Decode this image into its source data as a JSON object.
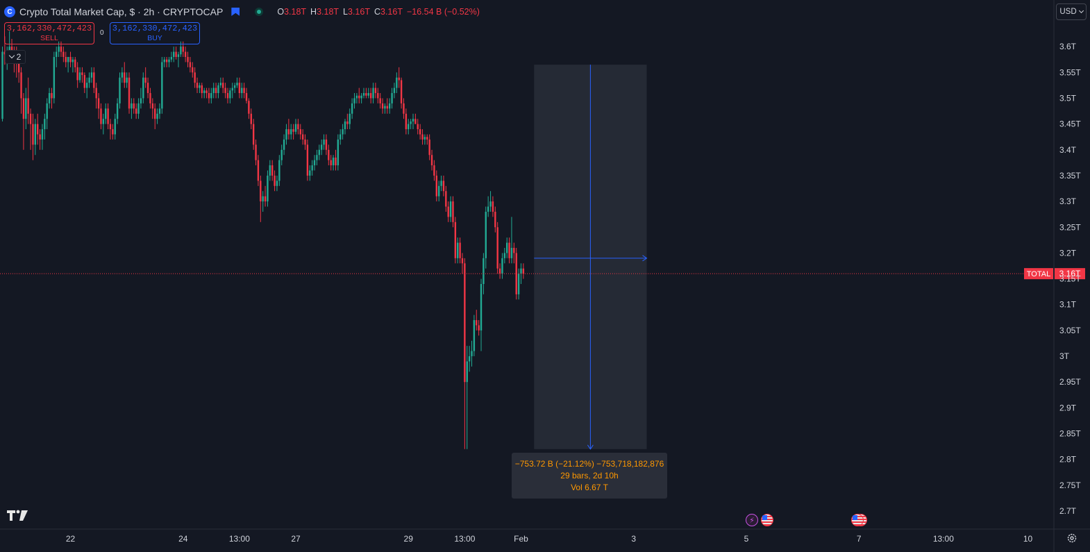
{
  "header": {
    "logo_letter": "C",
    "title": "Crypto Total Market Cap, $ · 2h · CRYPTOCAP",
    "ohlc": [
      {
        "label": "O",
        "value": "3.18T"
      },
      {
        "label": "H",
        "value": "3.18T"
      },
      {
        "label": "L",
        "value": "3.16T"
      },
      {
        "label": "C",
        "value": "3.16T"
      },
      {
        "label": "",
        "value": "−16.54 B (−0.52%)"
      }
    ]
  },
  "trading": {
    "sell_price": "3,162,330,472,423",
    "sell_label": "SELL",
    "spread": "0",
    "buy_price": "3,162,330,472,423",
    "buy_label": "BUY"
  },
  "indicators_toggle": {
    "count": "2"
  },
  "currency_selector": {
    "value": "USD"
  },
  "measure_tooltip": {
    "line1": "−753.72 B (−21.12%) −753,718,182,876",
    "line2": "29 bars, 2d 10h",
    "line3": "Vol 6.67 T"
  },
  "price_label": {
    "symbol": "TOTAL",
    "value": "3.16T"
  },
  "colors": {
    "background": "#141823",
    "up": "#22ab94",
    "down": "#f23645",
    "accent": "#2962ff",
    "measure_text": "#ff9800"
  },
  "icons": [
    "crypto-logo-icon",
    "bookmark-flag-icon",
    "market-status-icon",
    "chevron-down-icon",
    "tradingview-logo-icon",
    "lightning-event-icon",
    "us-flag-event-icon",
    "gear-icon"
  ],
  "chart_data": {
    "type": "candlestick",
    "title": "Crypto Total Market Cap, $ · 2h · CRYPTOCAP",
    "y_unit": "T",
    "ylim": [
      2.665,
      3.65
    ],
    "y_ticks": [
      {
        "v": 3.6,
        "label": "3.6T"
      },
      {
        "v": 3.55,
        "label": "3.55T"
      },
      {
        "v": 3.5,
        "label": "3.5T"
      },
      {
        "v": 3.45,
        "label": "3.45T"
      },
      {
        "v": 3.4,
        "label": "3.4T"
      },
      {
        "v": 3.35,
        "label": "3.35T"
      },
      {
        "v": 3.3,
        "label": "3.3T"
      },
      {
        "v": 3.25,
        "label": "3.25T"
      },
      {
        "v": 3.2,
        "label": "3.2T"
      },
      {
        "v": 3.15,
        "label": "3.15T"
      },
      {
        "v": 3.1,
        "label": "3.1T"
      },
      {
        "v": 3.05,
        "label": "3.05T"
      },
      {
        "v": 3.0,
        "label": "3T"
      },
      {
        "v": 2.95,
        "label": "2.95T"
      },
      {
        "v": 2.9,
        "label": "2.9T"
      },
      {
        "v": 2.85,
        "label": "2.85T"
      },
      {
        "v": 2.8,
        "label": "2.8T"
      },
      {
        "v": 2.75,
        "label": "2.75T"
      },
      {
        "v": 2.7,
        "label": "2.7T"
      }
    ],
    "x_ticks": [
      {
        "bar": 29,
        "label": "22"
      },
      {
        "bar": 77,
        "label": "24"
      },
      {
        "bar": 101,
        "label": "13:00"
      },
      {
        "bar": 125,
        "label": "27"
      },
      {
        "bar": 173,
        "label": "29"
      },
      {
        "bar": 197,
        "label": "13:00"
      },
      {
        "bar": 221,
        "label": "Feb"
      },
      {
        "bar": 269,
        "label": "3"
      },
      {
        "bar": 317,
        "label": "5"
      },
      {
        "bar": 365,
        "label": "7"
      },
      {
        "bar": 401,
        "label": "13:00"
      },
      {
        "bar": 437,
        "label": "10"
      }
    ],
    "candles": [
      [
        3.46,
        3.6,
        3.455,
        3.59
      ],
      [
        3.59,
        3.62,
        3.565,
        3.585
      ],
      [
        3.585,
        3.6,
        3.555,
        3.59
      ],
      [
        3.59,
        3.63,
        3.58,
        3.6
      ],
      [
        3.6,
        3.615,
        3.57,
        3.59
      ],
      [
        3.59,
        3.6,
        3.55,
        3.585
      ],
      [
        3.585,
        3.6,
        3.54,
        3.58
      ],
      [
        3.58,
        3.59,
        3.53,
        3.55
      ],
      [
        3.55,
        3.56,
        3.47,
        3.5
      ],
      [
        3.5,
        3.51,
        3.4,
        3.46
      ],
      [
        3.46,
        3.52,
        3.44,
        3.5
      ],
      [
        3.5,
        3.54,
        3.45,
        3.47
      ],
      [
        3.47,
        3.48,
        3.4,
        3.45
      ],
      [
        3.45,
        3.47,
        3.38,
        3.41
      ],
      [
        3.41,
        3.46,
        3.39,
        3.45
      ],
      [
        3.45,
        3.47,
        3.41,
        3.43
      ],
      [
        3.43,
        3.44,
        3.4,
        3.42
      ],
      [
        3.42,
        3.45,
        3.4,
        3.44
      ],
      [
        3.44,
        3.47,
        3.42,
        3.46
      ],
      [
        3.46,
        3.5,
        3.44,
        3.49
      ],
      [
        3.49,
        3.52,
        3.48,
        3.51
      ],
      [
        3.51,
        3.52,
        3.48,
        3.5
      ],
      [
        3.5,
        3.59,
        3.49,
        3.58
      ],
      [
        3.58,
        3.6,
        3.56,
        3.59
      ],
      [
        3.59,
        3.61,
        3.58,
        3.6
      ],
      [
        3.6,
        3.61,
        3.58,
        3.59
      ],
      [
        3.59,
        3.6,
        3.57,
        3.58
      ],
      [
        3.58,
        3.59,
        3.56,
        3.57
      ],
      [
        3.57,
        3.58,
        3.55,
        3.58
      ],
      [
        3.58,
        3.59,
        3.56,
        3.57
      ],
      [
        3.57,
        3.58,
        3.55,
        3.575
      ],
      [
        3.575,
        3.58,
        3.55,
        3.56
      ],
      [
        3.56,
        3.57,
        3.52,
        3.535
      ],
      [
        3.535,
        3.56,
        3.53,
        3.55
      ],
      [
        3.55,
        3.56,
        3.53,
        3.545
      ],
      [
        3.545,
        3.55,
        3.51,
        3.52
      ],
      [
        3.52,
        3.54,
        3.5,
        3.53
      ],
      [
        3.53,
        3.55,
        3.52,
        3.54
      ],
      [
        3.54,
        3.56,
        3.53,
        3.55
      ],
      [
        3.55,
        3.56,
        3.51,
        3.52
      ],
      [
        3.52,
        3.53,
        3.48,
        3.5
      ],
      [
        3.5,
        3.51,
        3.46,
        3.48
      ],
      [
        3.48,
        3.49,
        3.44,
        3.45
      ],
      [
        3.45,
        3.47,
        3.43,
        3.46
      ],
      [
        3.46,
        3.49,
        3.45,
        3.48
      ],
      [
        3.48,
        3.49,
        3.44,
        3.45
      ],
      [
        3.45,
        3.46,
        3.42,
        3.44
      ],
      [
        3.44,
        3.45,
        3.42,
        3.43
      ],
      [
        3.43,
        3.47,
        3.42,
        3.46
      ],
      [
        3.46,
        3.5,
        3.45,
        3.49
      ],
      [
        3.49,
        3.55,
        3.48,
        3.54
      ],
      [
        3.54,
        3.56,
        3.53,
        3.55
      ],
      [
        3.55,
        3.57,
        3.52,
        3.53
      ],
      [
        3.53,
        3.55,
        3.52,
        3.54
      ],
      [
        3.54,
        3.55,
        3.47,
        3.48
      ],
      [
        3.48,
        3.5,
        3.46,
        3.49
      ],
      [
        3.49,
        3.5,
        3.47,
        3.48
      ],
      [
        3.48,
        3.49,
        3.46,
        3.47
      ],
      [
        3.47,
        3.5,
        3.46,
        3.49
      ],
      [
        3.49,
        3.52,
        3.48,
        3.5
      ],
      [
        3.5,
        3.55,
        3.49,
        3.54
      ],
      [
        3.54,
        3.56,
        3.52,
        3.53
      ],
      [
        3.53,
        3.54,
        3.5,
        3.51
      ],
      [
        3.51,
        3.52,
        3.48,
        3.49
      ],
      [
        3.49,
        3.5,
        3.46,
        3.48
      ],
      [
        3.48,
        3.49,
        3.44,
        3.46
      ],
      [
        3.46,
        3.48,
        3.45,
        3.47
      ],
      [
        3.47,
        3.49,
        3.46,
        3.48
      ],
      [
        3.48,
        3.58,
        3.47,
        3.57
      ],
      [
        3.57,
        3.58,
        3.56,
        3.575
      ],
      [
        3.575,
        3.58,
        3.56,
        3.57
      ],
      [
        3.57,
        3.58,
        3.56,
        3.575
      ],
      [
        3.575,
        3.59,
        3.57,
        3.58
      ],
      [
        3.58,
        3.6,
        3.57,
        3.59
      ],
      [
        3.59,
        3.6,
        3.575,
        3.58
      ],
      [
        3.58,
        3.59,
        3.56,
        3.585
      ],
      [
        3.585,
        3.61,
        3.58,
        3.6
      ],
      [
        3.6,
        3.61,
        3.58,
        3.59
      ],
      [
        3.59,
        3.6,
        3.57,
        3.58
      ],
      [
        3.58,
        3.59,
        3.56,
        3.57
      ],
      [
        3.57,
        3.58,
        3.55,
        3.56
      ],
      [
        3.56,
        3.57,
        3.54,
        3.55
      ],
      [
        3.55,
        3.56,
        3.52,
        3.53
      ],
      [
        3.53,
        3.54,
        3.51,
        3.52
      ],
      [
        3.52,
        3.53,
        3.51,
        3.525
      ],
      [
        3.525,
        3.53,
        3.5,
        3.51
      ],
      [
        3.51,
        3.52,
        3.5,
        3.515
      ],
      [
        3.515,
        3.52,
        3.5,
        3.51
      ],
      [
        3.51,
        3.52,
        3.49,
        3.5
      ],
      [
        3.5,
        3.52,
        3.49,
        3.51
      ],
      [
        3.51,
        3.53,
        3.5,
        3.52
      ],
      [
        3.52,
        3.53,
        3.5,
        3.51
      ],
      [
        3.51,
        3.53,
        3.5,
        3.525
      ],
      [
        3.525,
        3.54,
        3.52,
        3.53
      ],
      [
        3.53,
        3.54,
        3.51,
        3.52
      ],
      [
        3.52,
        3.53,
        3.5,
        3.51
      ],
      [
        3.51,
        3.52,
        3.49,
        3.5
      ],
      [
        3.5,
        3.52,
        3.49,
        3.515
      ],
      [
        3.515,
        3.53,
        3.5,
        3.52
      ],
      [
        3.52,
        3.53,
        3.51,
        3.525
      ],
      [
        3.525,
        3.54,
        3.52,
        3.53
      ],
      [
        3.53,
        3.54,
        3.5,
        3.51
      ],
      [
        3.51,
        3.53,
        3.5,
        3.52
      ],
      [
        3.52,
        3.53,
        3.5,
        3.51
      ],
      [
        3.51,
        3.52,
        3.49,
        3.495
      ],
      [
        3.495,
        3.5,
        3.46,
        3.47
      ],
      [
        3.47,
        3.48,
        3.44,
        3.45
      ],
      [
        3.45,
        3.46,
        3.4,
        3.41
      ],
      [
        3.41,
        3.42,
        3.37,
        3.38
      ],
      [
        3.38,
        3.39,
        3.33,
        3.34
      ],
      [
        3.34,
        3.35,
        3.26,
        3.3
      ],
      [
        3.3,
        3.32,
        3.28,
        3.31
      ],
      [
        3.31,
        3.33,
        3.29,
        3.3
      ],
      [
        3.3,
        3.36,
        3.29,
        3.35
      ],
      [
        3.35,
        3.38,
        3.34,
        3.37
      ],
      [
        3.37,
        3.38,
        3.34,
        3.35
      ],
      [
        3.35,
        3.36,
        3.32,
        3.33
      ],
      [
        3.33,
        3.35,
        3.32,
        3.34
      ],
      [
        3.34,
        3.39,
        3.33,
        3.38
      ],
      [
        3.38,
        3.41,
        3.37,
        3.4
      ],
      [
        3.4,
        3.43,
        3.39,
        3.42
      ],
      [
        3.42,
        3.45,
        3.41,
        3.44
      ],
      [
        3.44,
        3.46,
        3.42,
        3.43
      ],
      [
        3.43,
        3.45,
        3.42,
        3.44
      ],
      [
        3.44,
        3.45,
        3.42,
        3.435
      ],
      [
        3.435,
        3.46,
        3.43,
        3.45
      ],
      [
        3.45,
        3.46,
        3.43,
        3.44
      ],
      [
        3.44,
        3.45,
        3.42,
        3.43
      ],
      [
        3.43,
        3.44,
        3.41,
        3.42
      ],
      [
        3.42,
        3.43,
        3.4,
        3.41
      ],
      [
        3.41,
        3.42,
        3.34,
        3.35
      ],
      [
        3.35,
        3.37,
        3.34,
        3.36
      ],
      [
        3.36,
        3.38,
        3.35,
        3.37
      ],
      [
        3.37,
        3.39,
        3.36,
        3.38
      ],
      [
        3.38,
        3.4,
        3.37,
        3.39
      ],
      [
        3.39,
        3.41,
        3.38,
        3.4
      ],
      [
        3.4,
        3.42,
        3.39,
        3.41
      ],
      [
        3.41,
        3.43,
        3.4,
        3.42
      ],
      [
        3.42,
        3.43,
        3.39,
        3.4
      ],
      [
        3.4,
        3.41,
        3.37,
        3.38
      ],
      [
        3.38,
        3.39,
        3.36,
        3.37
      ],
      [
        3.37,
        3.39,
        3.36,
        3.385
      ],
      [
        3.385,
        3.4,
        3.36,
        3.37
      ],
      [
        3.37,
        3.43,
        3.36,
        3.42
      ],
      [
        3.42,
        3.44,
        3.41,
        3.43
      ],
      [
        3.43,
        3.45,
        3.42,
        3.44
      ],
      [
        3.44,
        3.46,
        3.43,
        3.455
      ],
      [
        3.455,
        3.47,
        3.44,
        3.45
      ],
      [
        3.45,
        3.48,
        3.44,
        3.47
      ],
      [
        3.47,
        3.5,
        3.46,
        3.49
      ],
      [
        3.49,
        3.51,
        3.48,
        3.5
      ],
      [
        3.5,
        3.51,
        3.49,
        3.505
      ],
      [
        3.505,
        3.52,
        3.49,
        3.5
      ],
      [
        3.5,
        3.51,
        3.49,
        3.505
      ],
      [
        3.505,
        3.52,
        3.5,
        3.51
      ],
      [
        3.51,
        3.52,
        3.5,
        3.505
      ],
      [
        3.505,
        3.52,
        3.5,
        3.51
      ],
      [
        3.51,
        3.52,
        3.49,
        3.5
      ],
      [
        3.5,
        3.53,
        3.49,
        3.52
      ],
      [
        3.52,
        3.53,
        3.5,
        3.51
      ],
      [
        3.51,
        3.52,
        3.49,
        3.5
      ],
      [
        3.5,
        3.51,
        3.48,
        3.49
      ],
      [
        3.49,
        3.5,
        3.47,
        3.48
      ],
      [
        3.48,
        3.49,
        3.47,
        3.485
      ],
      [
        3.485,
        3.5,
        3.47,
        3.48
      ],
      [
        3.48,
        3.5,
        3.47,
        3.49
      ],
      [
        3.49,
        3.52,
        3.48,
        3.51
      ],
      [
        3.51,
        3.53,
        3.5,
        3.52
      ],
      [
        3.52,
        3.55,
        3.51,
        3.54
      ],
      [
        3.54,
        3.56,
        3.52,
        3.535
      ],
      [
        3.535,
        3.54,
        3.48,
        3.49
      ],
      [
        3.49,
        3.5,
        3.46,
        3.47
      ],
      [
        3.47,
        3.48,
        3.43,
        3.44
      ],
      [
        3.44,
        3.46,
        3.43,
        3.45
      ],
      [
        3.45,
        3.46,
        3.44,
        3.455
      ],
      [
        3.455,
        3.47,
        3.44,
        3.46
      ],
      [
        3.46,
        3.47,
        3.45,
        3.45
      ],
      [
        3.45,
        3.46,
        3.43,
        3.44
      ],
      [
        3.44,
        3.45,
        3.42,
        3.43
      ],
      [
        3.43,
        3.44,
        3.41,
        3.42
      ],
      [
        3.42,
        3.43,
        3.41,
        3.425
      ],
      [
        3.425,
        3.43,
        3.41,
        3.42
      ],
      [
        3.42,
        3.43,
        3.38,
        3.39
      ],
      [
        3.39,
        3.4,
        3.36,
        3.37
      ],
      [
        3.37,
        3.38,
        3.34,
        3.35
      ],
      [
        3.35,
        3.36,
        3.3,
        3.31
      ],
      [
        3.31,
        3.34,
        3.3,
        3.33
      ],
      [
        3.33,
        3.35,
        3.32,
        3.34
      ],
      [
        3.34,
        3.35,
        3.31,
        3.32
      ],
      [
        3.32,
        3.33,
        3.28,
        3.29
      ],
      [
        3.29,
        3.3,
        3.26,
        3.27
      ],
      [
        3.27,
        3.31,
        3.26,
        3.3
      ],
      [
        3.3,
        3.31,
        3.25,
        3.26
      ],
      [
        3.26,
        3.27,
        3.18,
        3.19
      ],
      [
        3.19,
        3.23,
        3.18,
        3.22
      ],
      [
        3.22,
        3.23,
        3.18,
        3.19
      ],
      [
        3.19,
        3.2,
        3.16,
        3.18
      ],
      [
        3.18,
        3.19,
        2.82,
        2.95
      ],
      [
        2.95,
        3.02,
        2.82,
        2.99
      ],
      [
        2.99,
        3.02,
        2.97,
        3.0
      ],
      [
        3.0,
        3.03,
        2.98,
        3.01
      ],
      [
        3.01,
        3.08,
        3.0,
        3.07
      ],
      [
        3.07,
        3.09,
        3.05,
        3.06
      ],
      [
        3.06,
        3.07,
        3.04,
        3.05
      ],
      [
        3.05,
        3.15,
        3.01,
        3.14
      ],
      [
        3.14,
        3.2,
        3.12,
        3.19
      ],
      [
        3.19,
        3.29,
        3.17,
        3.28
      ],
      [
        3.28,
        3.31,
        3.27,
        3.29
      ],
      [
        3.29,
        3.32,
        3.28,
        3.3
      ],
      [
        3.3,
        3.31,
        3.27,
        3.28
      ],
      [
        3.28,
        3.29,
        3.24,
        3.25
      ],
      [
        3.25,
        3.26,
        3.16,
        3.17
      ],
      [
        3.17,
        3.18,
        3.15,
        3.16
      ],
      [
        3.16,
        3.2,
        3.15,
        3.19
      ],
      [
        3.19,
        3.21,
        3.18,
        3.2
      ],
      [
        3.2,
        3.23,
        3.19,
        3.22
      ],
      [
        3.22,
        3.23,
        3.18,
        3.19
      ],
      [
        3.19,
        3.27,
        3.18,
        3.21
      ],
      [
        3.21,
        3.22,
        3.18,
        3.2
      ],
      [
        3.2,
        3.21,
        3.11,
        3.12
      ],
      [
        3.12,
        3.17,
        3.11,
        3.16
      ],
      [
        3.16,
        3.18,
        3.14,
        3.17
      ],
      [
        3.17,
        3.18,
        3.15,
        3.16
      ]
    ]
  }
}
